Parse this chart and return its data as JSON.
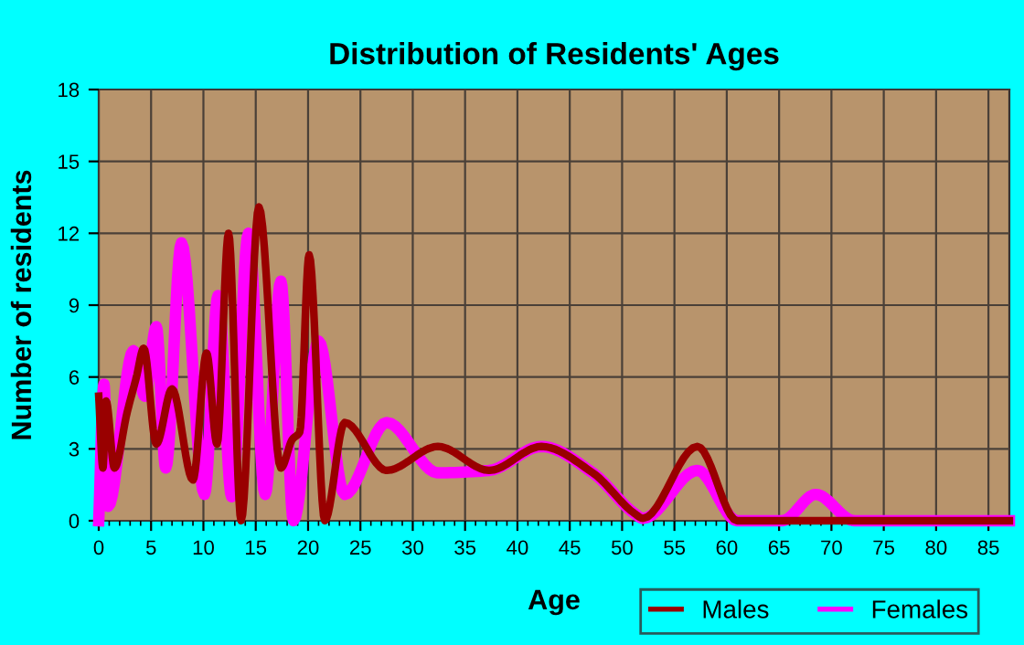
{
  "chart_data": {
    "type": "line",
    "title": "Distribution of Residents' Ages",
    "xlabel": "Age",
    "ylabel": "Number of residents",
    "xlim": [
      0,
      87
    ],
    "xticks": [
      0,
      5,
      10,
      15,
      20,
      25,
      30,
      35,
      40,
      45,
      50,
      55,
      60,
      65,
      70,
      75,
      80,
      85
    ],
    "ylim": [
      0,
      18
    ],
    "yticks": [
      0,
      3,
      6,
      9,
      12,
      15,
      18
    ],
    "grid": true,
    "legend": "bottom right",
    "marker": "none",
    "line_style": "solid",
    "series": [
      {
        "name": "Males",
        "color": "#990000",
        "x": [
          0,
          0.4,
          0.7,
          1.5,
          2.7,
          3.6,
          4.3,
          5.5,
          7,
          9,
          10.3,
          11.3,
          12.4,
          13.6,
          15.3,
          17.4,
          18.5,
          19.2,
          20.1,
          21.6,
          23.5,
          27.5,
          32.4,
          37.3,
          42.3,
          47.2,
          51.2,
          52,
          57.2,
          61,
          87
        ],
        "values": [
          5.2,
          2.2,
          5.0,
          2.2,
          4.5,
          6.0,
          7.2,
          3.2,
          5.5,
          1.7,
          7.0,
          3.2,
          12.0,
          0,
          13.1,
          2.2,
          3.4,
          3.7,
          11.1,
          0,
          4.1,
          2.1,
          3.1,
          2.1,
          3.1,
          2.0,
          0.3,
          0.1,
          3.1,
          0,
          0
        ]
      },
      {
        "name": "Females",
        "color": "#ff00ff",
        "x": [
          0,
          0.5,
          0.9,
          3.3,
          4.4,
          5.5,
          6.4,
          7.9,
          10.1,
          11.4,
          12.7,
          14.3,
          15.9,
          17.4,
          18.6,
          21,
          23.5,
          27.5,
          32.4,
          37.3,
          42.3,
          47.2,
          51.2,
          52,
          57.2,
          61,
          65.3,
          68.5,
          72.2,
          87
        ],
        "values": [
          0,
          5.7,
          0.6,
          7.1,
          5.2,
          8.1,
          2.2,
          11.6,
          1.1,
          9.4,
          1.0,
          12.0,
          1.1,
          10.0,
          0,
          7.5,
          1.1,
          4.1,
          2.0,
          2.1,
          3.1,
          2.0,
          0.3,
          0.1,
          2.1,
          0,
          0,
          1.1,
          0,
          0
        ]
      }
    ]
  }
}
